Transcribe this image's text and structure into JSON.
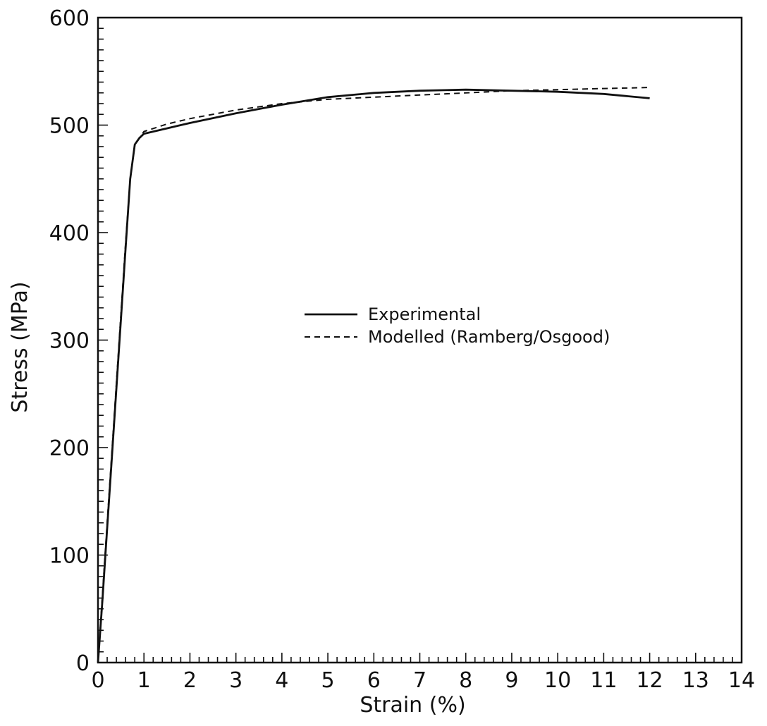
{
  "chart_data": {
    "type": "line",
    "xlabel": "Strain (%)",
    "ylabel": "Stress (MPa)",
    "xlim": [
      0,
      14
    ],
    "ylim": [
      0,
      600
    ],
    "x_ticks": [
      0,
      1,
      2,
      3,
      4,
      5,
      6,
      7,
      8,
      9,
      10,
      11,
      12,
      13,
      14
    ],
    "y_ticks": [
      0,
      100,
      200,
      300,
      400,
      500,
      600
    ],
    "grid": false,
    "legend_position": "center-right",
    "series": [
      {
        "name": "Experimental",
        "style": "solid",
        "x": [
          0,
          0.1,
          0.2,
          0.3,
          0.4,
          0.5,
          0.6,
          0.7,
          0.8,
          0.9,
          1.0,
          1.5,
          2.0,
          3.0,
          4.0,
          5.0,
          6.0,
          7.0,
          8.0,
          9.0,
          10.0,
          11.0,
          12.0
        ],
        "y": [
          0,
          60,
          125,
          190,
          255,
          320,
          385,
          450,
          482,
          488,
          492,
          497,
          502,
          511,
          519,
          526,
          530,
          532,
          533,
          532,
          531,
          529,
          525
        ]
      },
      {
        "name": "Modelled (Ramberg/Osgood)",
        "style": "dashed",
        "x": [
          0,
          0.1,
          0.2,
          0.3,
          0.4,
          0.5,
          0.6,
          0.7,
          0.8,
          0.9,
          1.0,
          1.5,
          2.0,
          3.0,
          4.0,
          5.0,
          6.0,
          7.0,
          8.0,
          9.0,
          10.0,
          11.0,
          12.0
        ],
        "y": [
          0,
          65,
          130,
          195,
          260,
          325,
          390,
          450,
          481,
          488,
          494,
          501,
          506,
          514,
          520,
          524,
          526,
          528,
          530,
          532,
          533,
          534,
          535
        ]
      }
    ]
  }
}
